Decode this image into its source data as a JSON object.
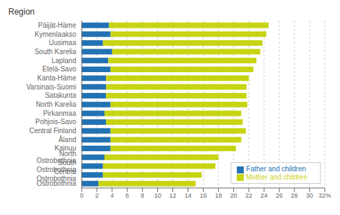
{
  "chart_data": {
    "type": "bar",
    "orientation": "horizontal",
    "stacked": true,
    "ylabel": "Region",
    "categories": [
      "Päijät-Häme",
      "Kymenlaakso",
      "Uusimaa",
      "South Karelia",
      "Lapland",
      "Etelä-Savo",
      "Kanta-Häme",
      "Varsinais-Suomi",
      "Satakunta",
      "North Karelia",
      "Pirkanmaa",
      "Pohjois-Savo",
      "Central Finland",
      "Åland",
      "Kainuu",
      "North Ostrobothnia",
      "South Ostrobothnia",
      "Central Ostrobothnia",
      "Ostrobothnia"
    ],
    "series": [
      {
        "name": "Father and children",
        "color": "#2272b4",
        "values": [
          3.6,
          3.8,
          2.8,
          4.0,
          3.5,
          3.8,
          3.2,
          3.2,
          3.2,
          3.8,
          3.0,
          3.2,
          3.8,
          3.8,
          3.8,
          3.0,
          2.8,
          2.8,
          2.2
        ]
      },
      {
        "name": "Mother and children",
        "color": "#c7d412",
        "values": [
          21.0,
          20.5,
          21.0,
          19.5,
          19.5,
          18.8,
          18.8,
          18.5,
          18.5,
          18.0,
          18.0,
          18.0,
          17.8,
          17.2,
          16.5,
          15.0,
          14.8,
          13.0,
          12.8
        ]
      }
    ],
    "xlim": [
      0,
      32
    ],
    "xticks": [
      0,
      2,
      4,
      6,
      8,
      10,
      12,
      14,
      16,
      18,
      20,
      22,
      24,
      26,
      28,
      30,
      {
        "value": 32,
        "label": "32%"
      }
    ],
    "grid": true,
    "legend": "lower right"
  }
}
